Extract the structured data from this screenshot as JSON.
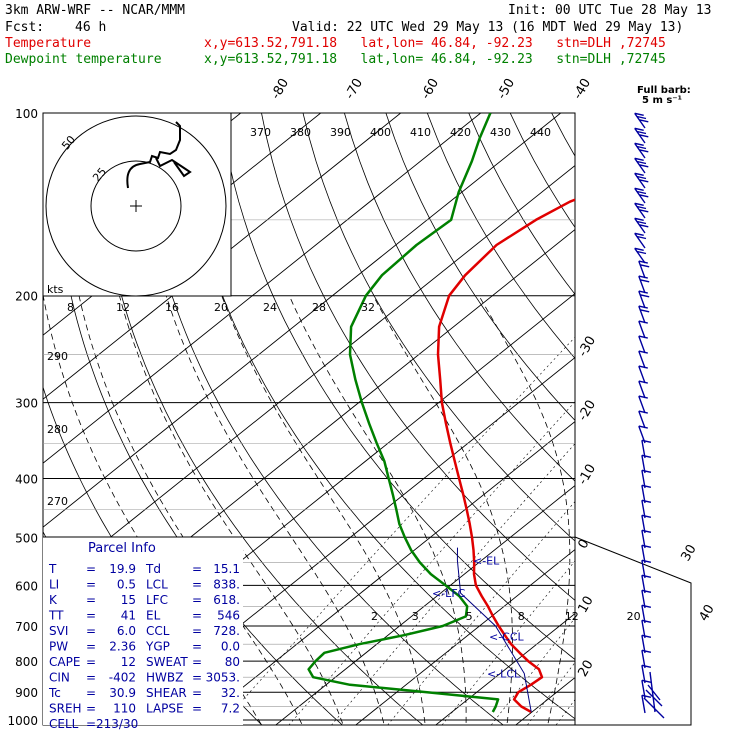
{
  "header": {
    "model": "3km ARW-WRF -- NCAR/MMM",
    "init": "Init: 00 UTC Tue 28 May 13",
    "fcst_label": "Fcst:",
    "fcst_value": "46 h",
    "valid": "Valid: 22 UTC Wed 29 May 13 (16 MDT Wed 29 May 13)",
    "temp_label": "Temperature",
    "dew_label": "Dewpoint temperature",
    "temp_info": "x,y=613.52,791.18   lat,lon= 46.84, -92.23   stn=DLH ,72745",
    "dew_info": "x,y=613.52,791.18   lat,lon= 46.84, -92.23   stn=DLH ,72745"
  },
  "colors": {
    "temperature": "#e00000",
    "dewpoint": "#008000",
    "barbs": "#0000a0",
    "parcel_text": "#0000a0"
  },
  "full_barb": {
    "line1": "Full barb:",
    "line2": "5 m s⁻¹"
  },
  "hodograph": {
    "unit": "kts",
    "ring_labels": [
      "25",
      "50"
    ]
  },
  "parcel_info": {
    "title": "Parcel Info",
    "rows": [
      {
        "k1": "T",
        "v1": "19.9",
        "k2": "Td",
        "v2": "15.1"
      },
      {
        "k1": "LI",
        "v1": "0.5",
        "k2": "LCL",
        "v2": "838."
      },
      {
        "k1": "K",
        "v1": "15",
        "k2": "LFC",
        "v2": "618."
      },
      {
        "k1": "TT",
        "v1": "41",
        "k2": "EL",
        "v2": "546"
      },
      {
        "k1": "SVI",
        "v1": "6.0",
        "k2": "CCL",
        "v2": "728."
      },
      {
        "k1": "PW",
        "v1": "2.36",
        "k2": "YGP",
        "v2": "0.0"
      },
      {
        "k1": "CAPE",
        "v1": "12",
        "k2": "SWEAT",
        "v2": "80"
      },
      {
        "k1": "CIN",
        "v1": "-402",
        "k2": "HWBZ",
        "v2": "3053."
      },
      {
        "k1": "Tc",
        "v1": "30.9",
        "k2": "SHEAR",
        "v2": "32."
      },
      {
        "k1": "SREH",
        "v1": "110",
        "k2": "LAPSE",
        "v2": "7.2"
      },
      {
        "k1": "CELL",
        "v1": "213/30",
        "k2": "",
        "v2": ""
      }
    ]
  },
  "chart_data": {
    "type": "line",
    "subtype": "skew-T log-p",
    "pressure_ticks": [
      "100",
      "200",
      "300",
      "400",
      "500",
      "600",
      "700",
      "800",
      "900",
      "1000"
    ],
    "isotherm_labels": [
      {
        "t": -80,
        "text": "-80"
      },
      {
        "t": -70,
        "text": "-70"
      },
      {
        "t": -60,
        "text": "-60"
      },
      {
        "t": -50,
        "text": "-50"
      },
      {
        "t": -40,
        "text": "-40"
      },
      {
        "t": -30,
        "text": "-30"
      },
      {
        "t": -20,
        "text": "-20"
      },
      {
        "t": -10,
        "text": "-10"
      },
      {
        "t": 0,
        "text": "0"
      },
      {
        "t": 10,
        "text": "10"
      },
      {
        "t": 20,
        "text": "20"
      },
      {
        "t": 30,
        "text": "30"
      },
      {
        "t": 40,
        "text": "40"
      }
    ],
    "theta_labels_upper": [
      "370",
      "380",
      "390",
      "400",
      "410",
      "420",
      "430",
      "440"
    ],
    "theta_labels_left": [
      "290",
      "280",
      "270"
    ],
    "mixing_ratio_labels": [
      "2",
      "3",
      "5",
      "8",
      "12",
      "20"
    ],
    "mixing_ratio_upper": [
      "8",
      "12",
      "16",
      "20",
      "24",
      "28",
      "32"
    ],
    "levels": [
      {
        "label": "EL",
        "text": "<-EL",
        "p": 546
      },
      {
        "label": "LFC",
        "text": "<-LFC",
        "p": 618
      },
      {
        "label": "CCL",
        "text": "<-CCL",
        "p": 728
      },
      {
        "label": "LCL",
        "text": "<-LCL",
        "p": 838
      }
    ],
    "series": [
      {
        "name": "Temperature",
        "points": [
          [
            970,
            19.9
          ],
          [
            950,
            17.8
          ],
          [
            925,
            15.8
          ],
          [
            900,
            15.2
          ],
          [
            875,
            15.6
          ],
          [
            850,
            15.8
          ],
          [
            825,
            14.2
          ],
          [
            800,
            11.6
          ],
          [
            775,
            9.2
          ],
          [
            750,
            6.8
          ],
          [
            725,
            4.6
          ],
          [
            700,
            2.4
          ],
          [
            675,
            0.2
          ],
          [
            650,
            -2.0
          ],
          [
            625,
            -4.4
          ],
          [
            600,
            -6.8
          ],
          [
            575,
            -8.8
          ],
          [
            550,
            -10.6
          ],
          [
            525,
            -12.6
          ],
          [
            500,
            -14.8
          ],
          [
            475,
            -17.2
          ],
          [
            450,
            -19.8
          ],
          [
            425,
            -22.6
          ],
          [
            400,
            -25.6
          ],
          [
            375,
            -28.8
          ],
          [
            350,
            -32.2
          ],
          [
            325,
            -35.8
          ],
          [
            300,
            -39.6
          ],
          [
            275,
            -43.4
          ],
          [
            250,
            -47.6
          ],
          [
            225,
            -51.8
          ],
          [
            200,
            -55.4
          ],
          [
            185,
            -56.6
          ],
          [
            165,
            -57.4
          ],
          [
            150,
            -56.4
          ],
          [
            140,
            -55.0
          ],
          [
            130,
            -51.8
          ],
          [
            120,
            -48.6
          ],
          [
            110,
            -49.8
          ],
          [
            100,
            -49.6
          ]
        ]
      },
      {
        "name": "Dewpoint temperature",
        "points": [
          [
            970,
            15.1
          ],
          [
            950,
            14.6
          ],
          [
            925,
            13.8
          ],
          [
            900,
            3.8
          ],
          [
            875,
            -7.0
          ],
          [
            850,
            -12.8
          ],
          [
            825,
            -14.6
          ],
          [
            800,
            -15.0
          ],
          [
            775,
            -15.2
          ],
          [
            750,
            -12.2
          ],
          [
            725,
            -8.0
          ],
          [
            700,
            -4.6
          ],
          [
            675,
            -3.2
          ],
          [
            650,
            -4.6
          ],
          [
            625,
            -7.2
          ],
          [
            600,
            -10.6
          ],
          [
            575,
            -14.2
          ],
          [
            550,
            -17.4
          ],
          [
            525,
            -20.4
          ],
          [
            500,
            -23.2
          ],
          [
            475,
            -26.0
          ],
          [
            450,
            -28.6
          ],
          [
            425,
            -31.4
          ],
          [
            400,
            -34.4
          ],
          [
            375,
            -37.6
          ],
          [
            350,
            -41.4
          ],
          [
            325,
            -45.4
          ],
          [
            300,
            -49.6
          ],
          [
            275,
            -54.0
          ],
          [
            250,
            -58.6
          ],
          [
            225,
            -62.8
          ],
          [
            200,
            -65.8
          ],
          [
            185,
            -67.0
          ],
          [
            165,
            -67.4
          ],
          [
            150,
            -67.0
          ],
          [
            135,
            -70.4
          ],
          [
            120,
            -73.6
          ],
          [
            110,
            -76.2
          ],
          [
            100,
            -78.8
          ]
        ]
      }
    ]
  }
}
